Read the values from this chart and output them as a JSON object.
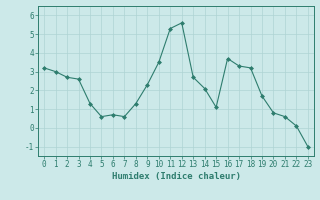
{
  "x": [
    0,
    1,
    2,
    3,
    4,
    5,
    6,
    7,
    8,
    9,
    10,
    11,
    12,
    13,
    14,
    15,
    16,
    17,
    18,
    19,
    20,
    21,
    22,
    23
  ],
  "y": [
    3.2,
    3.0,
    2.7,
    2.6,
    1.3,
    0.6,
    0.7,
    0.6,
    1.3,
    2.3,
    3.5,
    5.3,
    5.6,
    2.7,
    2.1,
    1.1,
    3.7,
    3.3,
    3.2,
    1.7,
    0.8,
    0.6,
    0.1,
    -1.0
  ],
  "line_color": "#2e7d6e",
  "marker": "D",
  "marker_size": 2.0,
  "bg_color": "#cce9e9",
  "grid_color": "#afd4d4",
  "tick_color": "#2e7d6e",
  "xlabel": "Humidex (Indice chaleur)",
  "ylim": [
    -1.5,
    6.5
  ],
  "xlim": [
    -0.5,
    23.5
  ],
  "yticks": [
    -1,
    0,
    1,
    2,
    3,
    4,
    5,
    6
  ],
  "xticks": [
    0,
    1,
    2,
    3,
    4,
    5,
    6,
    7,
    8,
    9,
    10,
    11,
    12,
    13,
    14,
    15,
    16,
    17,
    18,
    19,
    20,
    21,
    22,
    23
  ],
  "label_fontsize": 6.5,
  "tick_fontsize": 5.5,
  "linewidth": 0.8
}
